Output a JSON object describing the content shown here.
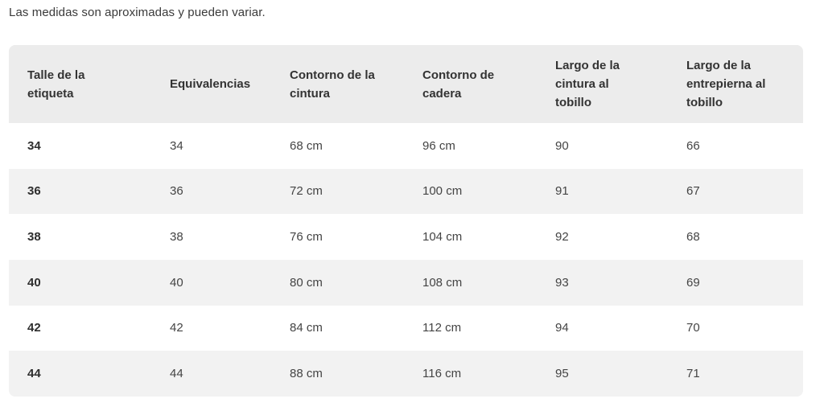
{
  "note": "Las medidas son aproximadas y pueden variar.",
  "table": {
    "headers": [
      "Talle de la etiqueta",
      "Equivalencias",
      "Contorno de la cintura",
      "Contorno de cadera",
      "Largo de la cintura al tobillo",
      "Largo de la entrepierna al tobillo"
    ],
    "rows": [
      [
        "34",
        "34",
        "68 cm",
        "96 cm",
        "90",
        "66"
      ],
      [
        "36",
        "36",
        "72 cm",
        "100 cm",
        "91",
        "67"
      ],
      [
        "38",
        "38",
        "76 cm",
        "104 cm",
        "92",
        "68"
      ],
      [
        "40",
        "40",
        "80 cm",
        "108 cm",
        "93",
        "69"
      ],
      [
        "42",
        "42",
        "84 cm",
        "112 cm",
        "94",
        "70"
      ],
      [
        "44",
        "44",
        "88 cm",
        "116 cm",
        "95",
        "71"
      ]
    ]
  }
}
